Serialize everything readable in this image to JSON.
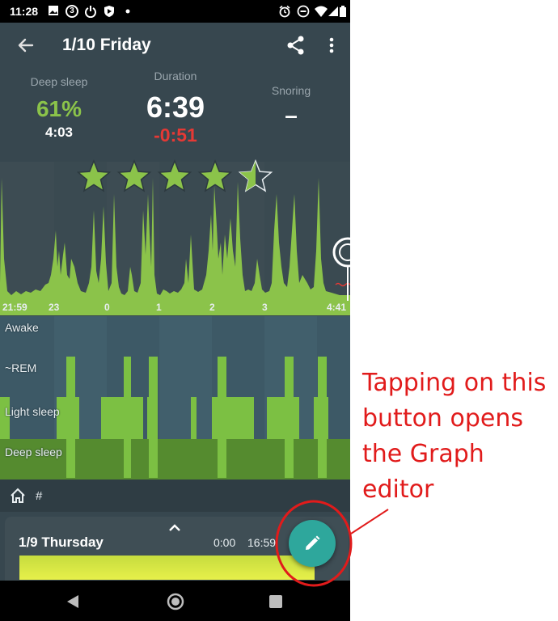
{
  "status_bar": {
    "time": "11:28",
    "left_icons": [
      "image-icon",
      "numbered-badge-icon",
      "power-icon",
      "shield-icon",
      "dot-icon"
    ],
    "badge_number": "3",
    "right_icons": [
      "alarm-icon",
      "do-not-disturb-icon",
      "wifi-icon",
      "signal-icon",
      "battery-icon"
    ]
  },
  "app_bar": {
    "title": "1/10 Friday",
    "back_icon": "arrow-back-icon",
    "share_icon": "share-icon",
    "menu_icon": "more-vert-icon"
  },
  "stats": {
    "deep_sleep": {
      "label": "Deep sleep",
      "percent": "61%",
      "time": "4:03",
      "color": "#8bc34a"
    },
    "duration": {
      "label": "Duration",
      "value": "6:39",
      "diff": "-0:51",
      "diff_color": "#e53935"
    },
    "snoring": {
      "label": "Snoring",
      "value": "–"
    }
  },
  "rating": {
    "stars": 4.5,
    "max": 5,
    "color": "#8bc34a"
  },
  "graph": {
    "hour_labels": [
      "21:59",
      "23",
      "0",
      "1",
      "2",
      "3",
      "4:41"
    ]
  },
  "hypnogram": {
    "labels": [
      "Awake",
      "~REM",
      "Light sleep",
      "Deep sleep"
    ]
  },
  "footer": {
    "home_icon": "home-icon",
    "tag_label": "#"
  },
  "card": {
    "day": "1/9 Thursday",
    "start": "0:00",
    "end": "16:59",
    "expand_icon": "chevron-up-icon"
  },
  "fab": {
    "icon": "pencil-icon",
    "color": "#2ea79c"
  },
  "nav_bar": {
    "back": "back-triangle-icon",
    "home": "home-circle-icon",
    "recents": "recents-square-icon"
  },
  "annotation": {
    "lines": [
      "Tapping on this",
      "button opens",
      "the Graph",
      "editor"
    ],
    "color": "#e11b1b"
  }
}
